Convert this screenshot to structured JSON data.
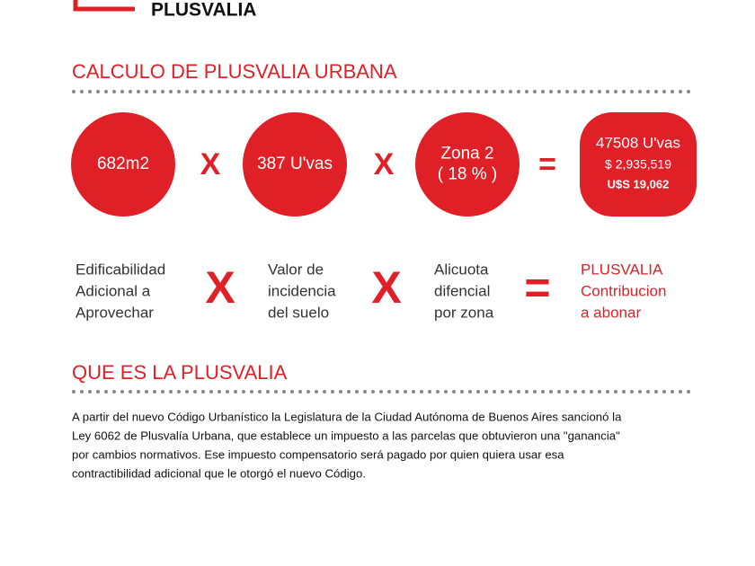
{
  "header": {
    "title": "PLUSVALIA"
  },
  "calculation": {
    "title": "CALCULO DE PLUSVALIA URBANA",
    "factors": [
      {
        "lines": [
          "682m2"
        ],
        "caption": [
          "Edificabilidad",
          "Adicional a",
          "Aprovechar"
        ]
      },
      {
        "lines": [
          "387 U'vas"
        ],
        "caption": [
          "Valor de",
          "incidencia",
          "del suelo"
        ]
      },
      {
        "lines": [
          "Zona 2",
          "( 18 % )"
        ],
        "caption": [
          "Alicuota",
          "difencial",
          "por zona"
        ]
      }
    ],
    "operators": [
      "X",
      "X",
      "="
    ],
    "result": {
      "lines": [
        "47508 U'vas",
        "$ 2,935,519",
        "U$S 19,062"
      ],
      "caption": [
        "PLUSVALIA",
        "Contribucion",
        "a abonar"
      ]
    }
  },
  "about": {
    "title": "QUE ES LA PLUSVALIA",
    "lines": [
      "A partir del nuevo Código Urbanístico la Legislatura de la Ciudad Autónoma de Buenos Aires sancionó la",
      "Ley 6062 de Plusvalía Urbana, que establece un impuesto a las parcelas que obtuvieron una \"ganancia\"",
      "por cambios normativos. Ese impuesto compensatorio será pagado por quien quiera usar esa",
      "contractibilidad adicional que le otorgó el nuevo Código."
    ]
  }
}
